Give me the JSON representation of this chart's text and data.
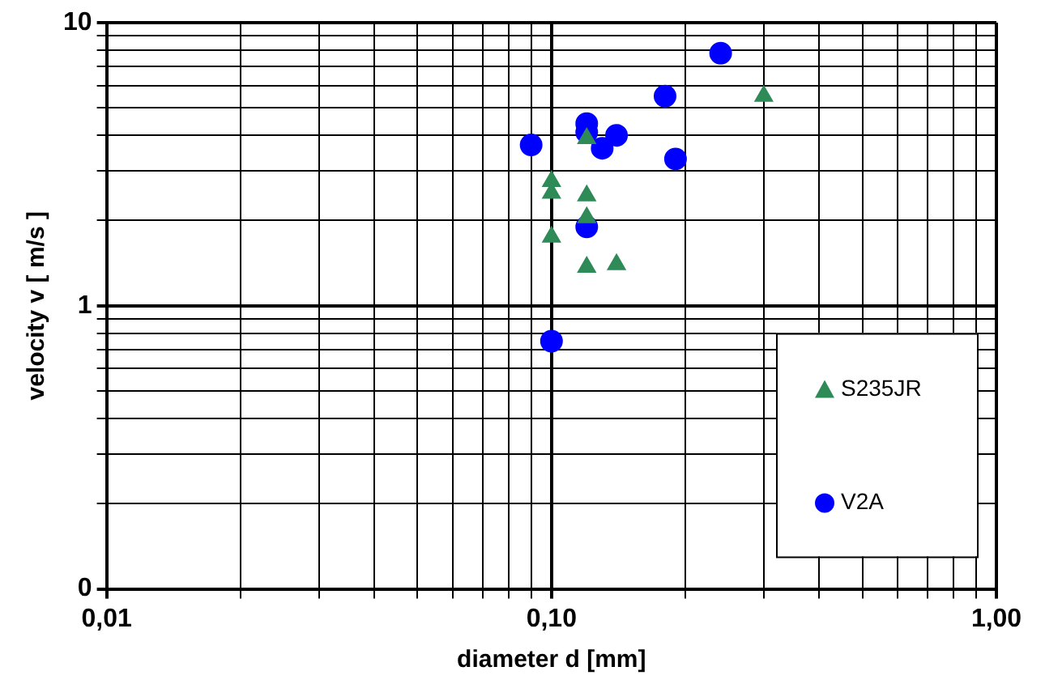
{
  "chart_data": {
    "type": "scatter",
    "xlabel": "diameter d [mm]",
    "ylabel": "velocity v [ m/s ]",
    "log": "xy",
    "grid": true,
    "legend": "bottom right",
    "xlim": [
      0.01,
      1
    ],
    "ylim": [
      0.1,
      10
    ],
    "xticks": [
      {
        "value": 0.01,
        "label": "0,01"
      },
      {
        "value": 0.02,
        "label": null
      },
      {
        "value": 0.03,
        "label": null
      },
      {
        "value": 0.04,
        "label": null
      },
      {
        "value": 0.05,
        "label": null
      },
      {
        "value": 0.06,
        "label": null
      },
      {
        "value": 0.07,
        "label": null
      },
      {
        "value": 0.08,
        "label": null
      },
      {
        "value": 0.09,
        "label": null
      },
      {
        "value": 0.1,
        "label": "0,10"
      },
      {
        "value": 0.2,
        "label": null
      },
      {
        "value": 0.3,
        "label": null
      },
      {
        "value": 0.4,
        "label": null
      },
      {
        "value": 0.5,
        "label": null
      },
      {
        "value": 0.6,
        "label": null
      },
      {
        "value": 0.7,
        "label": null
      },
      {
        "value": 0.8,
        "label": null
      },
      {
        "value": 0.9,
        "label": null
      },
      {
        "value": 1,
        "label": "1,00"
      }
    ],
    "yticks": [
      {
        "value": 0.1,
        "label": "0"
      },
      {
        "value": 0.2,
        "label": null
      },
      {
        "value": 0.3,
        "label": null
      },
      {
        "value": 0.4,
        "label": null
      },
      {
        "value": 0.5,
        "label": null
      },
      {
        "value": 0.6,
        "label": null
      },
      {
        "value": 0.7,
        "label": null
      },
      {
        "value": 0.8,
        "label": null
      },
      {
        "value": 0.9,
        "label": null
      },
      1,
      {
        "value": 2,
        "label": null
      },
      {
        "value": 3,
        "label": null
      },
      {
        "value": 4,
        "label": null
      },
      {
        "value": 5,
        "label": null
      },
      {
        "value": 6,
        "label": null
      },
      {
        "value": 7,
        "label": null
      },
      {
        "value": 8,
        "label": null
      },
      {
        "value": 9,
        "label": null
      },
      10
    ],
    "series": [
      {
        "name": "S235JR",
        "color": "#2e8b57",
        "marker": "triangle",
        "x": [
          0.3,
          0.1,
          0.1,
          0.1,
          0.12,
          0.12,
          0.12,
          0.14,
          0.12
        ],
        "values": [
          5.5,
          2.75,
          2.5,
          1.75,
          2.45,
          2.05,
          1.37,
          1.4,
          3.9
        ]
      },
      {
        "name": "V2A",
        "color": "#0000ff",
        "marker": "circle",
        "x": [
          0.09,
          0.12,
          0.12,
          0.13,
          0.14,
          0.18,
          0.19,
          0.24,
          0.12,
          0.1
        ],
        "values": [
          3.7,
          4.4,
          4.1,
          3.6,
          4.0,
          5.5,
          3.3,
          7.8,
          1.9,
          0.75
        ]
      }
    ]
  }
}
